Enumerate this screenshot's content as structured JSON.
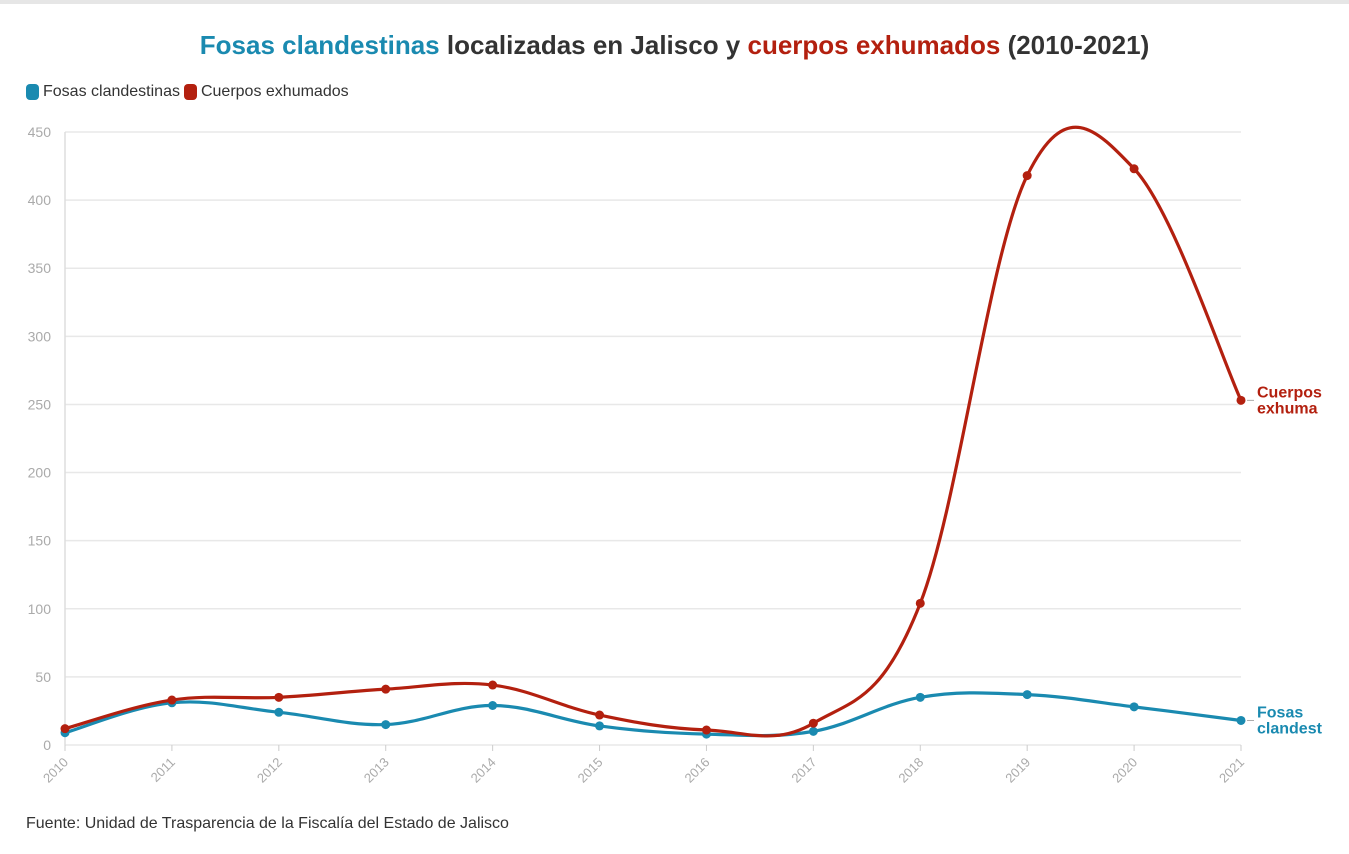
{
  "title": {
    "part1": "Fosas clandestinas",
    "part2": " localizadas en Jalisco y ",
    "part3": "cuerpos exhumados",
    "part4": " (2010-2021)"
  },
  "colors": {
    "fosas": "#1a8ab0",
    "cuerpos": "#b3200f",
    "grid": "#e8e8e8",
    "tick": "#aaaaaa"
  },
  "legend": [
    {
      "label": "Fosas clandestinas",
      "color": "#1a8ab0"
    },
    {
      "label": "Cuerpos exhumados",
      "color": "#b3200f"
    }
  ],
  "chart_data": {
    "type": "line",
    "title": "Fosas clandestinas localizadas en Jalisco y cuerpos exhumados (2010-2021)",
    "x": [
      2010,
      2011,
      2012,
      2013,
      2014,
      2015,
      2016,
      2017,
      2018,
      2019,
      2020,
      2021
    ],
    "series": [
      {
        "name": "Fosas clandestinas",
        "values": [
          9,
          31,
          24,
          15,
          29,
          14,
          8,
          10,
          35,
          37,
          28,
          18
        ],
        "end_label": [
          "Fosas",
          "clandest"
        ]
      },
      {
        "name": "Cuerpos exhumados",
        "values": [
          12,
          33,
          35,
          41,
          44,
          22,
          11,
          16,
          104,
          418,
          423,
          253
        ],
        "end_label": [
          "Cuerpos",
          "exhuma"
        ]
      }
    ],
    "ylim": [
      0,
      450
    ],
    "yticks": [
      0,
      50,
      100,
      150,
      200,
      250,
      300,
      350,
      400,
      450
    ],
    "xlabel": "",
    "ylabel": "",
    "grid": true,
    "legend_position": "top-left"
  },
  "source": "Fuente: Unidad de Trasparencia de la Fiscalía del Estado de Jalisco"
}
